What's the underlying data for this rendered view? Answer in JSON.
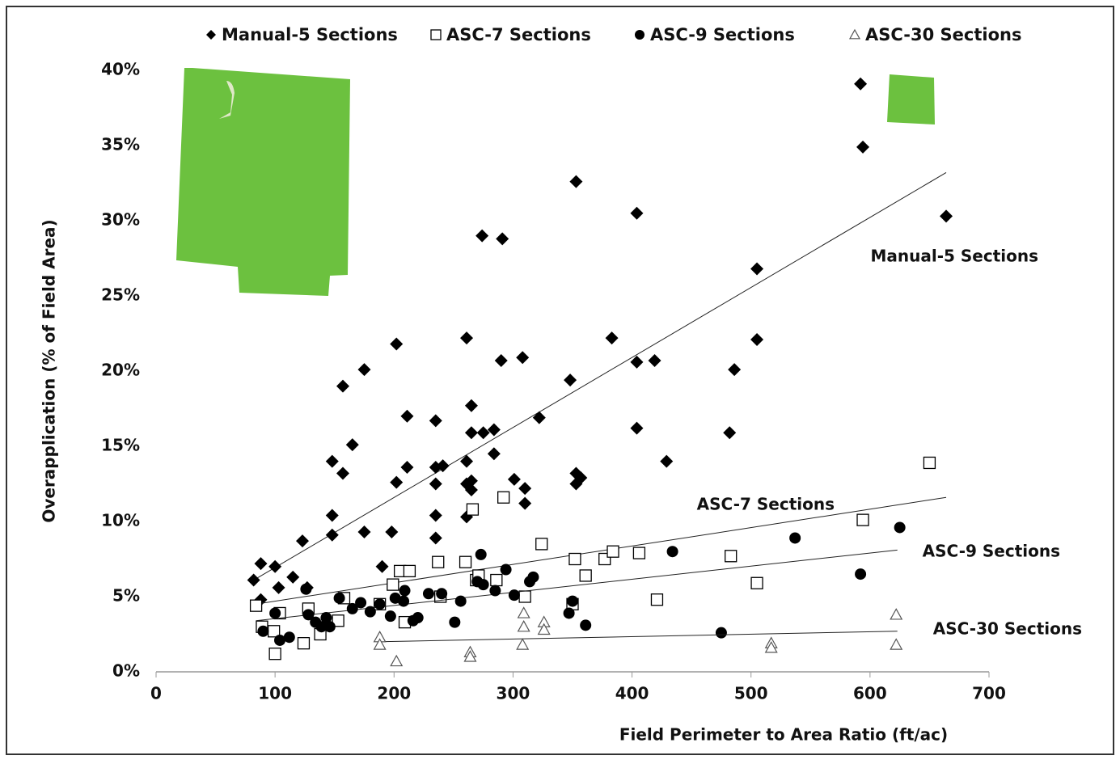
{
  "chart_data": {
    "type": "scatter",
    "x_label": "Field Perimeter to Area Ratio (ft/ac)",
    "y_label": "Overapplication (% of Field Area)",
    "xlim": [
      0,
      700
    ],
    "ylim": [
      0,
      40
    ],
    "xticks": [
      0,
      100,
      200,
      300,
      400,
      500,
      600,
      700
    ],
    "yticks": [
      {
        "value": 0,
        "label": "0%"
      },
      {
        "value": 5,
        "label": "5%"
      },
      {
        "value": 10,
        "label": "10%"
      },
      {
        "value": 15,
        "label": "15%"
      },
      {
        "value": 20,
        "label": "20%"
      },
      {
        "value": 25,
        "label": "25%"
      },
      {
        "value": 30,
        "label": "30%"
      },
      {
        "value": 35,
        "label": "35%"
      },
      {
        "value": 40,
        "label": "40%"
      }
    ],
    "series": [
      {
        "name": "Manual-5 Sections",
        "marker": "diamond",
        "color": "#000000",
        "x": [
          82,
          88,
          88,
          100,
          103,
          115,
          123,
          127,
          148,
          148,
          148,
          157,
          157,
          165,
          175,
          175,
          190,
          198,
          202,
          202,
          211,
          211,
          235,
          235,
          235,
          235,
          235,
          241,
          261,
          261,
          261,
          261,
          265,
          265,
          265,
          265,
          274,
          275,
          284,
          284,
          291,
          290,
          301,
          308,
          310,
          310,
          322,
          348,
          353,
          353,
          353,
          357,
          383,
          404,
          404,
          404,
          419,
          429,
          482,
          486,
          505,
          505,
          592,
          594,
          664
        ],
        "values": [
          6.1,
          7.2,
          4.8,
          7.0,
          5.6,
          6.3,
          8.7,
          5.6,
          14.0,
          10.4,
          9.1,
          19.0,
          13.2,
          15.1,
          20.1,
          9.3,
          7.0,
          9.3,
          21.8,
          12.6,
          17.0,
          13.6,
          16.7,
          13.6,
          12.5,
          10.4,
          8.9,
          13.7,
          22.2,
          14.0,
          12.5,
          10.3,
          17.7,
          15.9,
          12.7,
          12.1,
          29.0,
          15.9,
          16.1,
          14.5,
          28.8,
          20.7,
          12.8,
          20.9,
          12.2,
          11.2,
          16.9,
          19.4,
          32.6,
          13.2,
          12.5,
          12.9,
          22.2,
          30.5,
          20.6,
          16.2,
          20.7,
          14.0,
          15.9,
          20.1,
          26.8,
          22.1,
          39.1,
          34.9,
          30.3
        ],
        "trendline": {
          "x": [
            82,
            664
          ],
          "values": [
            6.1,
            33.2
          ]
        }
      },
      {
        "name": "ASC-7 Sections",
        "marker": "square",
        "color": "#000000",
        "x": [
          84,
          89,
          99,
          100,
          104,
          124,
          128,
          138,
          153,
          158,
          188,
          199,
          205,
          213,
          209,
          237,
          239,
          260,
          266,
          269,
          271,
          292,
          286,
          310,
          324,
          352,
          350,
          361,
          377,
          384,
          406,
          421,
          483,
          505,
          594,
          650
        ],
        "values": [
          4.4,
          3.0,
          2.7,
          1.2,
          3.9,
          1.9,
          4.2,
          2.5,
          3.4,
          4.9,
          4.5,
          5.8,
          6.7,
          6.7,
          3.3,
          7.3,
          5.0,
          7.3,
          10.8,
          6.1,
          6.4,
          11.6,
          6.1,
          5.0,
          8.5,
          7.5,
          4.5,
          6.4,
          7.5,
          8.0,
          7.9,
          4.8,
          7.7,
          5.9,
          10.1,
          13.9
        ],
        "trendline": {
          "x": [
            84,
            664
          ],
          "values": [
            4.5,
            11.6
          ]
        }
      },
      {
        "name": "ASC-9 Sections",
        "marker": "circle",
        "color": "#000000",
        "x": [
          90,
          100,
          104,
          112,
          126,
          128,
          134,
          139,
          143,
          146,
          154,
          165,
          172,
          180,
          188,
          197,
          201,
          208,
          209,
          216,
          220,
          229,
          240,
          251,
          256,
          270,
          273,
          275,
          285,
          294,
          301,
          314,
          317,
          347,
          350,
          361,
          434,
          475,
          537,
          592,
          625
        ],
        "values": [
          2.7,
          3.9,
          2.1,
          2.3,
          5.5,
          3.8,
          3.3,
          3.0,
          3.6,
          3.0,
          4.9,
          4.2,
          4.6,
          4.0,
          4.5,
          3.7,
          4.9,
          4.7,
          5.4,
          3.4,
          3.6,
          5.2,
          5.2,
          3.3,
          4.7,
          6.0,
          7.8,
          5.8,
          5.4,
          6.8,
          5.1,
          6.0,
          6.3,
          3.9,
          4.7,
          3.1,
          8.0,
          2.6,
          8.9,
          6.5,
          9.6
        ],
        "trendline": {
          "x": [
            84,
            623
          ],
          "values": [
            3.4,
            8.1
          ]
        }
      },
      {
        "name": "ASC-30 Sections",
        "marker": "triangle",
        "color": "#555555",
        "x": [
          188,
          188,
          202,
          264,
          264,
          308,
          309,
          309,
          326,
          326,
          517,
          517,
          622,
          622
        ],
        "values": [
          2.3,
          1.8,
          0.7,
          1.3,
          1.0,
          1.8,
          3.0,
          3.9,
          3.3,
          2.8,
          1.9,
          1.6,
          3.8,
          1.8
        ],
        "trendline": {
          "x": [
            188,
            623
          ],
          "values": [
            2.0,
            2.7
          ]
        }
      }
    ]
  }
}
